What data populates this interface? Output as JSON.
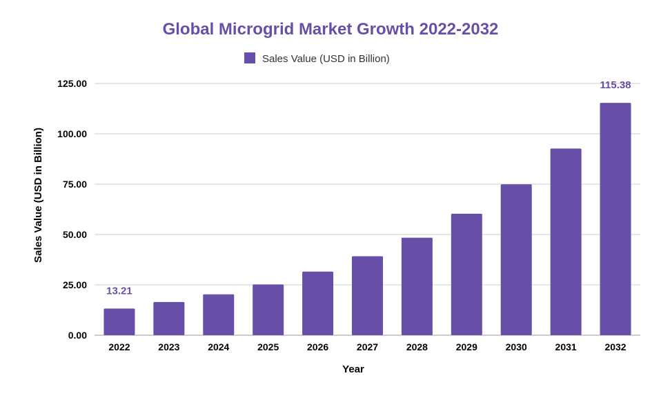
{
  "chart_data": {
    "type": "bar",
    "title": "Global Microgrid Market Growth 2022-2032",
    "xlabel": "Year",
    "ylabel": "Sales Value (USD in Billion)",
    "legend": {
      "placement": "top-center",
      "entries": [
        "Sales Value (USD in Billion)"
      ]
    },
    "grid": true,
    "ylim": [
      0,
      125
    ],
    "yticks": [
      "0.00",
      "25.00",
      "50.00",
      "75.00",
      "100.00",
      "125.00"
    ],
    "categories": [
      "2022",
      "2023",
      "2024",
      "2025",
      "2026",
      "2027",
      "2028",
      "2029",
      "2030",
      "2031",
      "2032"
    ],
    "series": [
      {
        "name": "Sales Value (USD in Billion)",
        "color": "#674ea7",
        "values": [
          13.21,
          16.5,
          20.3,
          25.2,
          31.6,
          39.2,
          48.4,
          60.3,
          74.9,
          92.7,
          115.38
        ]
      }
    ],
    "data_labels": [
      {
        "index": 0,
        "text": "13.21"
      },
      {
        "index": 10,
        "text": "115.38"
      }
    ],
    "colors": {
      "bar": "#674ea7",
      "title": "#674ea7",
      "data_label": "#674ea7",
      "grid": "#cccccc",
      "text": "#000000"
    }
  }
}
